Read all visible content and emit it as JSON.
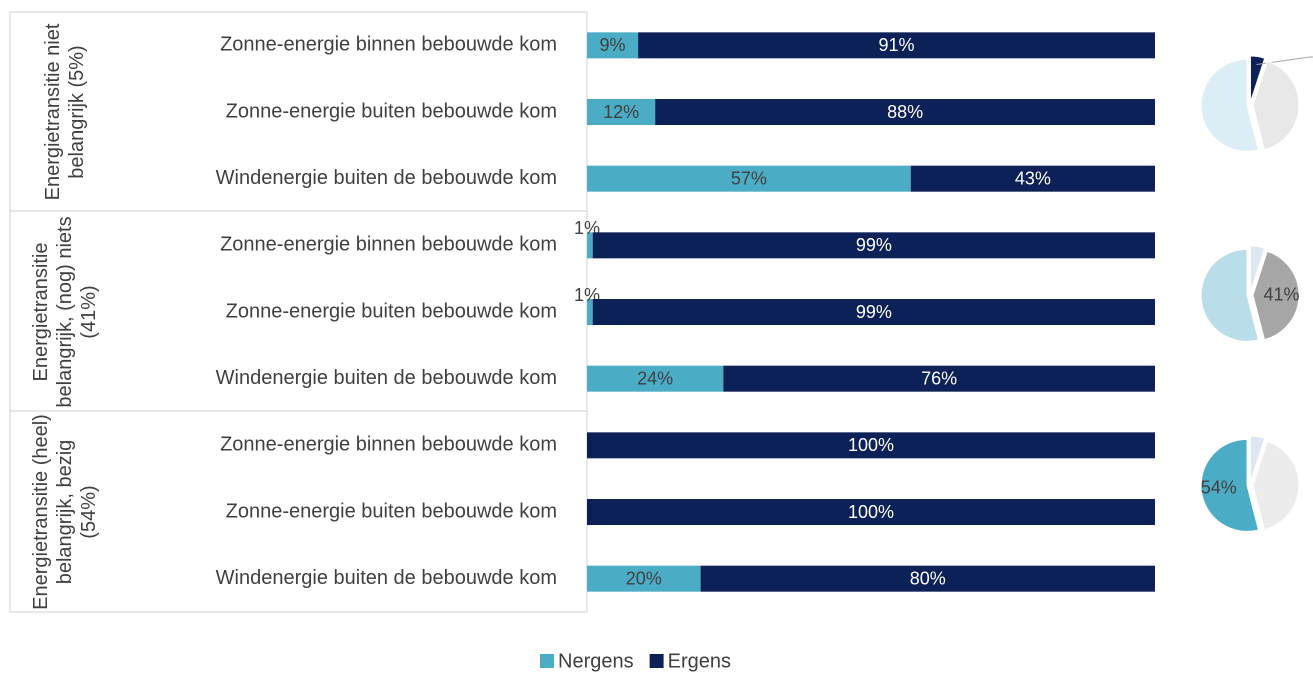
{
  "chart_data": [
    {
      "type": "bar",
      "orientation": "horizontal",
      "stacked": true,
      "xlim": [
        0,
        100
      ],
      "groups": [
        {
          "label": "Energietransitie niet belangrijk (5%)",
          "categories": [
            "Zonne-energie binnen bebouwde kom",
            "Zonne-energie buiten bebouwde kom",
            "Windenergie buiten de bebouwde kom"
          ]
        },
        {
          "label": "Energietransitie belangrijk, (nog) niets (41%)",
          "categories": [
            "Zonne-energie binnen bebouwde kom",
            "Zonne-energie buiten bebouwde kom",
            "Windenergie buiten de bebouwde kom"
          ]
        },
        {
          "label": "Energietransitie (heel) belangrijk, bezig (54%)",
          "categories": [
            "Zonne-energie binnen bebouwde kom",
            "Zonne-energie buiten bebouwde kom",
            "Windenergie buiten de bebouwde kom"
          ]
        }
      ],
      "series": [
        {
          "name": "Nergens",
          "color": "#4bacc6",
          "values": [
            9,
            12,
            57,
            1,
            1,
            24,
            0,
            0,
            20
          ],
          "value_labels": [
            "9%",
            "12%",
            "57%",
            "1%",
            "1%",
            "24%",
            null,
            null,
            "20%"
          ]
        },
        {
          "name": "Ergens",
          "color": "#0c2157",
          "values": [
            91,
            88,
            43,
            99,
            99,
            76,
            100,
            100,
            80
          ],
          "value_labels": [
            "91%",
            "88%",
            "43%",
            "99%",
            "99%",
            "76%",
            "100%",
            "100%",
            "80%"
          ]
        }
      ],
      "legend": "bottom"
    },
    {
      "type": "pie",
      "values": [
        5,
        41,
        54
      ],
      "colors": [
        "#0c2157",
        "#e8e8e8",
        "#dbeef5"
      ],
      "value_labels": [
        "5%",
        null,
        null
      ]
    },
    {
      "type": "pie",
      "values": [
        5,
        41,
        54
      ],
      "colors": [
        "#dde7f0",
        "#a6a6a6",
        "#b9dde9"
      ],
      "value_labels": [
        null,
        "41%",
        null
      ]
    },
    {
      "type": "pie",
      "values": [
        5,
        41,
        54
      ],
      "colors": [
        "#dde6f2",
        "#ececec",
        "#4bacc6"
      ],
      "value_labels": [
        null,
        null,
        "54%"
      ]
    }
  ]
}
